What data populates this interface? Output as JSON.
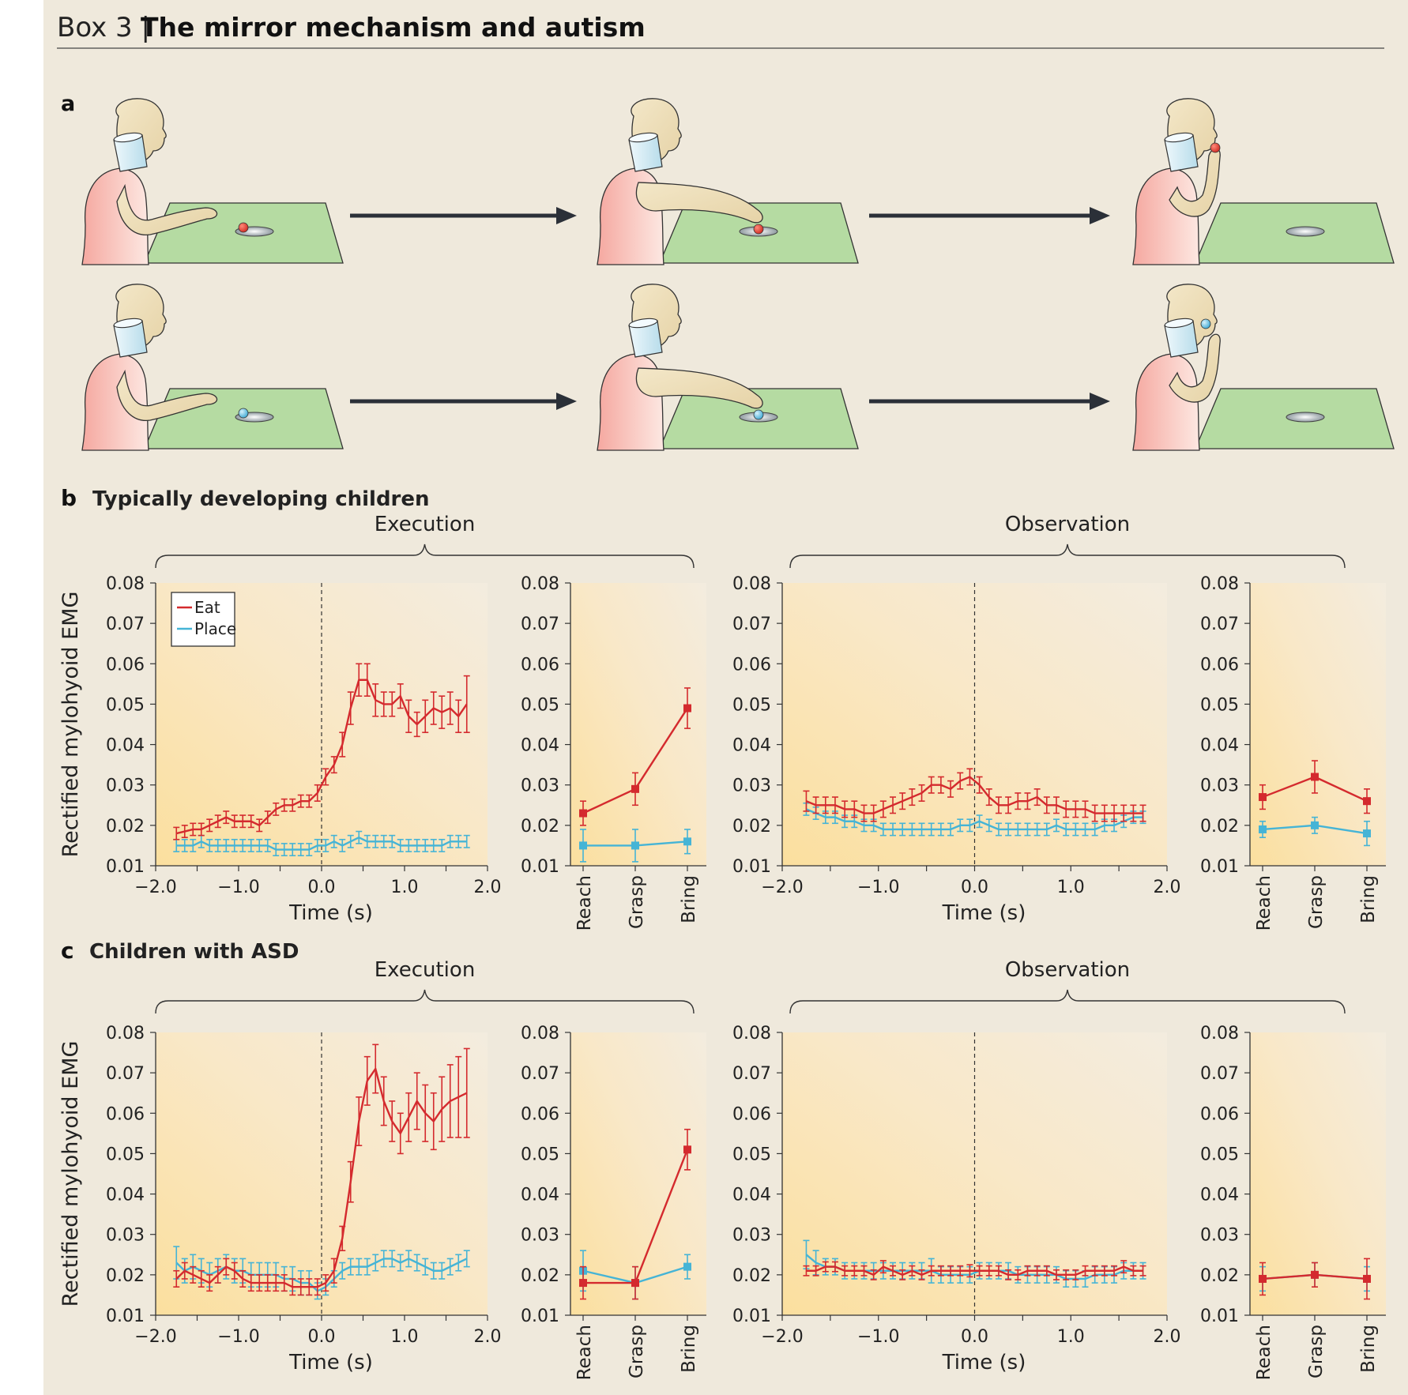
{
  "header": {
    "box_label": "Box 3 |",
    "title": "The mirror mechanism and autism"
  },
  "panel_a": {
    "label": "a"
  },
  "panel_b": {
    "letter": "b",
    "title": "Typically developing children"
  },
  "panel_c": {
    "letter": "c",
    "title": "Children with ASD"
  },
  "group_labels": {
    "execution": "Execution",
    "observation": "Observation"
  },
  "axes": {
    "ylabel": "Rectified mylohyoid EMG",
    "xlabel": "Time (s)",
    "y_ticks": [
      "0.01",
      "0.02",
      "0.03",
      "0.04",
      "0.05",
      "0.06",
      "0.07",
      "0.08"
    ],
    "x_ticks": [
      "−2.0",
      "−1.0",
      "0.0",
      "1.0",
      "2.0"
    ],
    "phase_ticks": [
      "Reach",
      "Grasp",
      "Bring"
    ]
  },
  "legend": {
    "eat": "Eat",
    "place": "Place"
  },
  "colors": {
    "eat": "#d42a2e",
    "place": "#45b4d6",
    "background": "#efe9dc",
    "plot_bg": "#fbe7c4",
    "table": "#b7dca2"
  },
  "chart_data": [
    {
      "id": "b_exec_time",
      "type": "line",
      "title": "Execution",
      "xlabel": "Time (s)",
      "ylabel": "Rectified mylohyoid EMG",
      "xlim": [
        -2.0,
        2.0
      ],
      "ylim": [
        0.01,
        0.08
      ],
      "x": [
        -1.75,
        -1.65,
        -1.55,
        -1.45,
        -1.35,
        -1.25,
        -1.15,
        -1.05,
        -0.95,
        -0.85,
        -0.75,
        -0.65,
        -0.55,
        -0.45,
        -0.35,
        -0.25,
        -0.15,
        -0.05,
        0.05,
        0.15,
        0.25,
        0.35,
        0.45,
        0.55,
        0.65,
        0.75,
        0.85,
        0.95,
        1.05,
        1.15,
        1.25,
        1.35,
        1.45,
        1.55,
        1.65,
        1.75
      ],
      "series": [
        {
          "name": "Eat",
          "values": [
            0.018,
            0.0185,
            0.019,
            0.019,
            0.02,
            0.021,
            0.022,
            0.021,
            0.021,
            0.021,
            0.02,
            0.022,
            0.024,
            0.025,
            0.025,
            0.026,
            0.026,
            0.028,
            0.032,
            0.035,
            0.04,
            0.049,
            0.056,
            0.056,
            0.051,
            0.05,
            0.05,
            0.052,
            0.047,
            0.045,
            0.047,
            0.049,
            0.048,
            0.049,
            0.047,
            0.05
          ],
          "errors": [
            0.0015,
            0.0015,
            0.0015,
            0.0015,
            0.0015,
            0.0015,
            0.0015,
            0.0015,
            0.0015,
            0.0015,
            0.0015,
            0.0015,
            0.0015,
            0.0015,
            0.0015,
            0.0015,
            0.0015,
            0.002,
            0.002,
            0.002,
            0.003,
            0.004,
            0.004,
            0.004,
            0.004,
            0.003,
            0.003,
            0.003,
            0.004,
            0.003,
            0.004,
            0.004,
            0.004,
            0.004,
            0.004,
            0.007
          ]
        },
        {
          "name": "Place",
          "values": [
            0.015,
            0.015,
            0.015,
            0.016,
            0.015,
            0.015,
            0.015,
            0.015,
            0.015,
            0.015,
            0.015,
            0.015,
            0.014,
            0.014,
            0.014,
            0.014,
            0.014,
            0.015,
            0.015,
            0.016,
            0.015,
            0.016,
            0.017,
            0.016,
            0.016,
            0.016,
            0.016,
            0.015,
            0.015,
            0.015,
            0.015,
            0.015,
            0.015,
            0.016,
            0.016,
            0.016
          ],
          "errors": [
            0.0015,
            0.0015,
            0.0015,
            0.0015,
            0.0015,
            0.0015,
            0.0015,
            0.0015,
            0.0015,
            0.0015,
            0.0015,
            0.0015,
            0.0015,
            0.0015,
            0.0015,
            0.0015,
            0.0015,
            0.0015,
            0.0015,
            0.0015,
            0.0015,
            0.0015,
            0.0015,
            0.0015,
            0.0015,
            0.0015,
            0.0015,
            0.0015,
            0.0015,
            0.0015,
            0.0015,
            0.0015,
            0.0015,
            0.0015,
            0.0015,
            0.0015
          ]
        }
      ]
    },
    {
      "id": "b_exec_phase",
      "type": "line",
      "categories": [
        "Reach",
        "Grasp",
        "Bring"
      ],
      "ylim": [
        0.01,
        0.08
      ],
      "series": [
        {
          "name": "Eat",
          "values": [
            0.023,
            0.029,
            0.049
          ],
          "errors": [
            0.003,
            0.004,
            0.005
          ]
        },
        {
          "name": "Place",
          "values": [
            0.015,
            0.015,
            0.016
          ],
          "errors": [
            0.004,
            0.004,
            0.003
          ]
        }
      ]
    },
    {
      "id": "b_obs_time",
      "type": "line",
      "title": "Observation",
      "xlabel": "Time (s)",
      "xlim": [
        -2.0,
        2.0
      ],
      "ylim": [
        0.01,
        0.08
      ],
      "x": [
        -1.75,
        -1.65,
        -1.55,
        -1.45,
        -1.35,
        -1.25,
        -1.15,
        -1.05,
        -0.95,
        -0.85,
        -0.75,
        -0.65,
        -0.55,
        -0.45,
        -0.35,
        -0.25,
        -0.15,
        -0.05,
        0.05,
        0.15,
        0.25,
        0.35,
        0.45,
        0.55,
        0.65,
        0.75,
        0.85,
        0.95,
        1.05,
        1.15,
        1.25,
        1.35,
        1.45,
        1.55,
        1.65,
        1.75
      ],
      "series": [
        {
          "name": "Eat",
          "values": [
            0.026,
            0.025,
            0.025,
            0.025,
            0.024,
            0.024,
            0.023,
            0.023,
            0.024,
            0.025,
            0.026,
            0.027,
            0.028,
            0.03,
            0.03,
            0.029,
            0.031,
            0.032,
            0.03,
            0.027,
            0.025,
            0.025,
            0.026,
            0.026,
            0.027,
            0.025,
            0.025,
            0.024,
            0.024,
            0.024,
            0.023,
            0.023,
            0.023,
            0.023,
            0.023,
            0.023
          ],
          "errors": [
            0.0025,
            0.002,
            0.002,
            0.002,
            0.002,
            0.002,
            0.002,
            0.002,
            0.002,
            0.002,
            0.002,
            0.002,
            0.002,
            0.002,
            0.002,
            0.002,
            0.002,
            0.002,
            0.002,
            0.002,
            0.002,
            0.002,
            0.002,
            0.002,
            0.002,
            0.002,
            0.002,
            0.002,
            0.002,
            0.002,
            0.002,
            0.002,
            0.002,
            0.002,
            0.002,
            0.002
          ]
        },
        {
          "name": "Place",
          "values": [
            0.024,
            0.023,
            0.022,
            0.022,
            0.021,
            0.021,
            0.02,
            0.02,
            0.019,
            0.019,
            0.019,
            0.019,
            0.019,
            0.019,
            0.019,
            0.019,
            0.02,
            0.02,
            0.021,
            0.02,
            0.019,
            0.019,
            0.019,
            0.019,
            0.019,
            0.019,
            0.02,
            0.019,
            0.019,
            0.019,
            0.019,
            0.02,
            0.02,
            0.021,
            0.022,
            0.022
          ],
          "errors": [
            0.0015,
            0.0015,
            0.0015,
            0.0015,
            0.0015,
            0.0015,
            0.0015,
            0.0015,
            0.0015,
            0.0015,
            0.0015,
            0.0015,
            0.0015,
            0.0015,
            0.0015,
            0.0015,
            0.0015,
            0.0015,
            0.0015,
            0.0015,
            0.0015,
            0.0015,
            0.0015,
            0.0015,
            0.0015,
            0.0015,
            0.0015,
            0.0015,
            0.0015,
            0.0015,
            0.0015,
            0.0015,
            0.0015,
            0.0015,
            0.0015,
            0.0015
          ]
        }
      ]
    },
    {
      "id": "b_obs_phase",
      "type": "line",
      "categories": [
        "Reach",
        "Grasp",
        "Bring"
      ],
      "ylim": [
        0.01,
        0.08
      ],
      "series": [
        {
          "name": "Eat",
          "values": [
            0.027,
            0.032,
            0.026
          ],
          "errors": [
            0.003,
            0.004,
            0.003
          ]
        },
        {
          "name": "Place",
          "values": [
            0.019,
            0.02,
            0.018
          ],
          "errors": [
            0.002,
            0.002,
            0.003
          ]
        }
      ]
    },
    {
      "id": "c_exec_time",
      "type": "line",
      "title": "Execution",
      "xlabel": "Time (s)",
      "ylabel": "Rectified mylohyoid EMG",
      "xlim": [
        -2.0,
        2.0
      ],
      "ylim": [
        0.01,
        0.08
      ],
      "x": [
        -1.75,
        -1.65,
        -1.55,
        -1.45,
        -1.35,
        -1.25,
        -1.15,
        -1.05,
        -0.95,
        -0.85,
        -0.75,
        -0.65,
        -0.55,
        -0.45,
        -0.35,
        -0.25,
        -0.15,
        -0.05,
        0.05,
        0.15,
        0.25,
        0.35,
        0.45,
        0.55,
        0.65,
        0.75,
        0.85,
        0.95,
        1.05,
        1.15,
        1.25,
        1.35,
        1.45,
        1.55,
        1.65,
        1.75
      ],
      "series": [
        {
          "name": "Eat",
          "values": [
            0.019,
            0.021,
            0.02,
            0.019,
            0.018,
            0.02,
            0.022,
            0.021,
            0.019,
            0.018,
            0.018,
            0.018,
            0.018,
            0.018,
            0.017,
            0.017,
            0.017,
            0.017,
            0.018,
            0.021,
            0.029,
            0.043,
            0.058,
            0.068,
            0.071,
            0.063,
            0.058,
            0.055,
            0.059,
            0.063,
            0.06,
            0.058,
            0.061,
            0.063,
            0.064,
            0.065
          ],
          "errors": [
            0.002,
            0.002,
            0.002,
            0.002,
            0.002,
            0.002,
            0.002,
            0.002,
            0.002,
            0.002,
            0.002,
            0.002,
            0.002,
            0.002,
            0.002,
            0.002,
            0.002,
            0.002,
            0.002,
            0.003,
            0.003,
            0.005,
            0.006,
            0.006,
            0.006,
            0.006,
            0.005,
            0.005,
            0.006,
            0.007,
            0.007,
            0.007,
            0.008,
            0.009,
            0.01,
            0.011
          ]
        },
        {
          "name": "Place",
          "values": [
            0.023,
            0.021,
            0.022,
            0.021,
            0.02,
            0.021,
            0.022,
            0.021,
            0.021,
            0.02,
            0.02,
            0.02,
            0.02,
            0.019,
            0.019,
            0.018,
            0.018,
            0.016,
            0.017,
            0.019,
            0.021,
            0.022,
            0.022,
            0.022,
            0.023,
            0.024,
            0.024,
            0.023,
            0.024,
            0.023,
            0.022,
            0.021,
            0.021,
            0.022,
            0.023,
            0.024
          ],
          "errors": [
            0.004,
            0.003,
            0.003,
            0.003,
            0.003,
            0.003,
            0.003,
            0.003,
            0.003,
            0.003,
            0.003,
            0.003,
            0.003,
            0.003,
            0.003,
            0.003,
            0.003,
            0.002,
            0.002,
            0.002,
            0.002,
            0.002,
            0.002,
            0.002,
            0.002,
            0.002,
            0.002,
            0.002,
            0.002,
            0.002,
            0.002,
            0.002,
            0.002,
            0.002,
            0.002,
            0.002
          ]
        }
      ]
    },
    {
      "id": "c_exec_phase",
      "type": "line",
      "categories": [
        "Reach",
        "Grasp",
        "Bring"
      ],
      "ylim": [
        0.01,
        0.08
      ],
      "series": [
        {
          "name": "Eat",
          "values": [
            0.018,
            0.018,
            0.051
          ],
          "errors": [
            0.004,
            0.004,
            0.005
          ]
        },
        {
          "name": "Place",
          "values": [
            0.021,
            0.018,
            0.022
          ],
          "errors": [
            0.005,
            0.004,
            0.003
          ]
        }
      ]
    },
    {
      "id": "c_obs_time",
      "type": "line",
      "title": "Observation",
      "xlabel": "Time (s)",
      "xlim": [
        -2.0,
        2.0
      ],
      "ylim": [
        0.01,
        0.08
      ],
      "x": [
        -1.75,
        -1.65,
        -1.55,
        -1.45,
        -1.35,
        -1.25,
        -1.15,
        -1.05,
        -0.95,
        -0.85,
        -0.75,
        -0.65,
        -0.55,
        -0.45,
        -0.35,
        -0.25,
        -0.15,
        -0.05,
        0.05,
        0.15,
        0.25,
        0.35,
        0.45,
        0.55,
        0.65,
        0.75,
        0.85,
        0.95,
        1.05,
        1.15,
        1.25,
        1.35,
        1.45,
        1.55,
        1.65,
        1.75
      ],
      "series": [
        {
          "name": "Eat",
          "values": [
            0.021,
            0.021,
            0.022,
            0.022,
            0.021,
            0.021,
            0.021,
            0.02,
            0.022,
            0.021,
            0.02,
            0.021,
            0.02,
            0.021,
            0.021,
            0.021,
            0.021,
            0.021,
            0.021,
            0.021,
            0.021,
            0.02,
            0.02,
            0.021,
            0.021,
            0.021,
            0.02,
            0.02,
            0.02,
            0.021,
            0.021,
            0.021,
            0.021,
            0.022,
            0.021,
            0.021
          ],
          "errors": [
            0.0012,
            0.0012,
            0.0012,
            0.0012,
            0.0012,
            0.0012,
            0.0012,
            0.0012,
            0.0015,
            0.0012,
            0.0012,
            0.0012,
            0.0012,
            0.0012,
            0.0012,
            0.0012,
            0.0012,
            0.0015,
            0.0012,
            0.0012,
            0.0012,
            0.0012,
            0.0012,
            0.0012,
            0.0012,
            0.0012,
            0.0012,
            0.0012,
            0.0012,
            0.0012,
            0.0012,
            0.0012,
            0.0012,
            0.0015,
            0.0012,
            0.0012
          ]
        },
        {
          "name": "Place",
          "values": [
            0.025,
            0.023,
            0.022,
            0.022,
            0.021,
            0.021,
            0.021,
            0.021,
            0.021,
            0.021,
            0.021,
            0.021,
            0.021,
            0.021,
            0.02,
            0.02,
            0.02,
            0.02,
            0.021,
            0.021,
            0.021,
            0.021,
            0.02,
            0.02,
            0.02,
            0.02,
            0.02,
            0.019,
            0.019,
            0.019,
            0.02,
            0.02,
            0.02,
            0.021,
            0.021,
            0.021
          ],
          "errors": [
            0.0035,
            0.003,
            0.002,
            0.002,
            0.002,
            0.002,
            0.002,
            0.002,
            0.002,
            0.002,
            0.002,
            0.002,
            0.002,
            0.003,
            0.002,
            0.002,
            0.002,
            0.002,
            0.002,
            0.002,
            0.002,
            0.002,
            0.002,
            0.002,
            0.002,
            0.002,
            0.002,
            0.002,
            0.002,
            0.002,
            0.002,
            0.002,
            0.002,
            0.002,
            0.002,
            0.002
          ]
        }
      ]
    },
    {
      "id": "c_obs_phase",
      "type": "line",
      "categories": [
        "Reach",
        "Grasp",
        "Bring"
      ],
      "ylim": [
        0.01,
        0.08
      ],
      "series": [
        {
          "name": "Eat",
          "values": [
            0.019,
            0.02,
            0.019
          ],
          "errors": [
            0.004,
            0.003,
            0.005
          ]
        },
        {
          "name": "Place",
          "values": [
            0.019,
            0.02,
            0.019
          ],
          "errors": [
            0.003,
            0.003,
            0.003
          ]
        }
      ]
    }
  ]
}
